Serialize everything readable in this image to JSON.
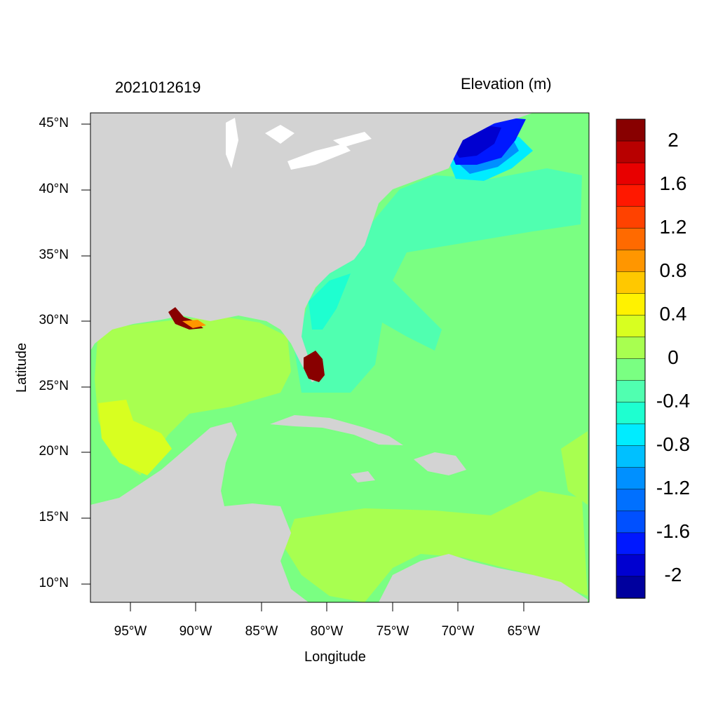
{
  "titles": {
    "left": "2021012619",
    "right": "Elevation (m)"
  },
  "axes": {
    "xlabel": "Longitude",
    "ylabel": "Latitude",
    "xticks": [
      "95°W",
      "90°W",
      "85°W",
      "80°W",
      "75°W",
      "70°W",
      "65°W"
    ],
    "yticks": [
      "45°N",
      "40°N",
      "35°N",
      "30°N",
      "25°N",
      "20°N",
      "15°N",
      "10°N"
    ]
  },
  "colorbar": {
    "colors": [
      "#00009e",
      "#0000d0",
      "#0018ff",
      "#0050ff",
      "#0070ff",
      "#0090ff",
      "#00c0ff",
      "#00ecff",
      "#1effd0",
      "#50ffb0",
      "#7aff82",
      "#a8ff50",
      "#d8ff20",
      "#fff200",
      "#ffc800",
      "#ff9600",
      "#ff6a00",
      "#ff4200",
      "#ff1800",
      "#e80000",
      "#b80000",
      "#880000"
    ],
    "labels": [
      "2",
      "1.6",
      "1.2",
      "0.8",
      "0.4",
      "0",
      "-0.4",
      "-0.8",
      "-1.2",
      "-1.6",
      "-2"
    ]
  },
  "colors": {
    "land": "#d3d3d3",
    "ocean_neutral": "#7aff82",
    "gulf_positive": "#a8ff50",
    "atlantic_negative": "#50ffb0",
    "northeast_low": "#0018ff",
    "florida_high": "#880000"
  }
}
